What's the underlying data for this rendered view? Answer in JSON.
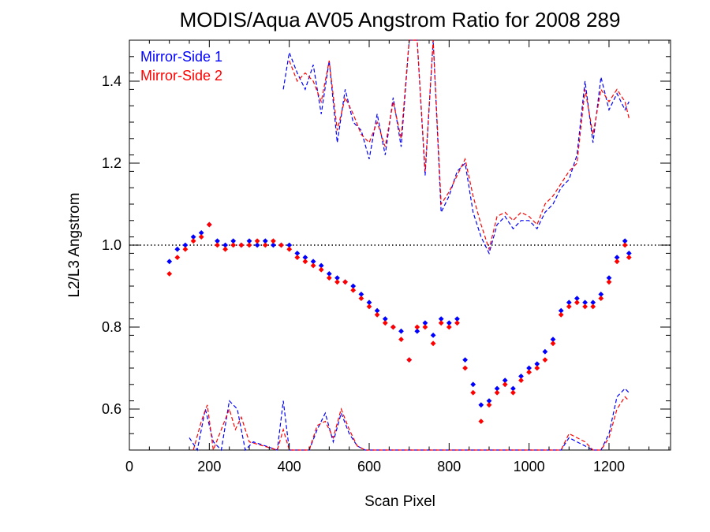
{
  "chart_data": {
    "type": "scatter",
    "title": "MODIS/Aqua AV05 Angstrom Ratio for 2008 289",
    "xlabel": "Scan Pixel",
    "ylabel": "L2/L3 Angstrom",
    "xlim": [
      0,
      1354
    ],
    "ylim": [
      0.5,
      1.5
    ],
    "xticks": [
      0,
      200,
      400,
      600,
      800,
      1000,
      1200
    ],
    "yticks": [
      0.6,
      0.8,
      1.0,
      1.2,
      1.4
    ],
    "xtick_labels": [
      "0",
      "200",
      "400",
      "600",
      "800",
      "1000",
      "1200"
    ],
    "ytick_labels": [
      "0.6",
      "0.8",
      "1.0",
      "1.2",
      "1.4"
    ],
    "reference_line": {
      "y": 1.0,
      "style": "dotted"
    },
    "grid": false,
    "legend_position": "top-left",
    "series": [
      {
        "name": "Mirror-Side 1",
        "color": "#0000ff",
        "points": {
          "x": [
            100,
            120,
            140,
            160,
            180,
            200,
            220,
            240,
            260,
            280,
            300,
            320,
            340,
            360,
            380,
            400,
            420,
            440,
            460,
            480,
            500,
            520,
            540,
            560,
            580,
            600,
            620,
            640,
            660,
            680,
            700,
            720,
            740,
            760,
            780,
            800,
            820,
            840,
            860,
            880,
            900,
            920,
            940,
            960,
            980,
            1000,
            1020,
            1040,
            1060,
            1080,
            1100,
            1120,
            1140,
            1160,
            1180,
            1200,
            1220,
            1240,
            1250
          ],
          "y": [
            0.96,
            0.99,
            1.0,
            1.02,
            1.03,
            1.05,
            1.01,
            1.0,
            1.01,
            1.0,
            1.01,
            1.0,
            1.01,
            1.0,
            1.0,
            1.0,
            0.98,
            0.97,
            0.96,
            0.95,
            0.93,
            0.92,
            0.91,
            0.9,
            0.88,
            0.86,
            0.84,
            0.82,
            0.8,
            0.79,
            0.72,
            0.79,
            0.81,
            0.78,
            0.82,
            0.81,
            0.82,
            0.72,
            0.66,
            0.61,
            0.62,
            0.65,
            0.67,
            0.65,
            0.68,
            0.7,
            0.71,
            0.74,
            0.77,
            0.84,
            0.86,
            0.87,
            0.86,
            0.86,
            0.88,
            0.92,
            0.97,
            1.01,
            0.98
          ]
        },
        "upper_envelope": {
          "x": [
            385,
            400,
            420,
            440,
            460,
            480,
            500,
            520,
            540,
            560,
            580,
            600,
            620,
            640,
            660,
            680,
            700,
            720,
            740,
            760,
            780,
            800,
            820,
            840,
            860,
            880,
            900,
            920,
            940,
            960,
            980,
            1000,
            1020,
            1040,
            1060,
            1080,
            1100,
            1120,
            1140,
            1160,
            1180,
            1200,
            1220,
            1240,
            1250
          ],
          "y": [
            1.38,
            1.47,
            1.42,
            1.38,
            1.44,
            1.32,
            1.45,
            1.25,
            1.38,
            1.3,
            1.28,
            1.21,
            1.32,
            1.22,
            1.36,
            1.24,
            1.5,
            1.5,
            1.17,
            1.5,
            1.08,
            1.12,
            1.18,
            1.2,
            1.08,
            1.02,
            0.98,
            1.05,
            1.07,
            1.04,
            1.06,
            1.06,
            1.04,
            1.08,
            1.1,
            1.14,
            1.16,
            1.22,
            1.4,
            1.25,
            1.41,
            1.33,
            1.37,
            1.33,
            1.35
          ]
        },
        "lower_envelope": {
          "x": [
            150,
            170,
            190,
            210,
            230,
            250,
            270,
            290,
            310,
            370,
            385,
            400,
            450,
            470,
            490,
            510,
            530,
            550,
            570,
            590,
            1080,
            1100,
            1120,
            1140,
            1160,
            1180,
            1200,
            1220,
            1240,
            1250
          ],
          "y": [
            0.53,
            0.5,
            0.6,
            0.52,
            0.5,
            0.62,
            0.6,
            0.5,
            0.52,
            0.5,
            0.62,
            0.5,
            0.5,
            0.55,
            0.59,
            0.52,
            0.59,
            0.54,
            0.51,
            0.5,
            0.5,
            0.53,
            0.52,
            0.51,
            0.5,
            0.5,
            0.54,
            0.63,
            0.65,
            0.64
          ]
        }
      },
      {
        "name": "Mirror-Side 2",
        "color": "#ff0000",
        "points": {
          "x": [
            100,
            120,
            140,
            160,
            180,
            200,
            220,
            240,
            260,
            280,
            300,
            320,
            340,
            360,
            380,
            400,
            420,
            440,
            460,
            480,
            500,
            520,
            540,
            560,
            580,
            600,
            620,
            640,
            660,
            680,
            700,
            720,
            740,
            760,
            780,
            800,
            820,
            840,
            860,
            880,
            900,
            920,
            940,
            960,
            980,
            1000,
            1020,
            1040,
            1060,
            1080,
            1100,
            1120,
            1140,
            1160,
            1180,
            1200,
            1220,
            1240,
            1250
          ],
          "y": [
            0.93,
            0.97,
            0.99,
            1.01,
            1.02,
            1.05,
            1.0,
            0.99,
            1.0,
            1.0,
            1.0,
            1.01,
            1.0,
            1.01,
            1.0,
            0.99,
            0.97,
            0.96,
            0.95,
            0.94,
            0.92,
            0.91,
            0.91,
            0.89,
            0.87,
            0.85,
            0.83,
            0.81,
            0.8,
            0.77,
            0.72,
            0.8,
            0.8,
            0.76,
            0.81,
            0.8,
            0.81,
            0.7,
            0.64,
            0.57,
            0.61,
            0.64,
            0.66,
            0.64,
            0.67,
            0.69,
            0.7,
            0.72,
            0.76,
            0.83,
            0.85,
            0.86,
            0.85,
            0.85,
            0.87,
            0.91,
            0.96,
            1.0,
            0.97
          ]
        },
        "upper_envelope": {
          "x": [
            400,
            420,
            440,
            460,
            480,
            500,
            520,
            540,
            560,
            580,
            600,
            620,
            640,
            660,
            680,
            700,
            720,
            740,
            760,
            780,
            800,
            820,
            840,
            860,
            880,
            900,
            920,
            940,
            960,
            980,
            1000,
            1020,
            1040,
            1060,
            1080,
            1100,
            1120,
            1140,
            1160,
            1180,
            1200,
            1220,
            1240,
            1250
          ],
          "y": [
            1.45,
            1.4,
            1.42,
            1.4,
            1.35,
            1.45,
            1.28,
            1.36,
            1.32,
            1.27,
            1.25,
            1.3,
            1.24,
            1.35,
            1.26,
            1.5,
            1.5,
            1.18,
            1.5,
            1.1,
            1.13,
            1.17,
            1.21,
            1.12,
            1.05,
            0.99,
            1.07,
            1.08,
            1.06,
            1.08,
            1.07,
            1.05,
            1.1,
            1.12,
            1.15,
            1.18,
            1.2,
            1.38,
            1.27,
            1.38,
            1.35,
            1.38,
            1.35,
            1.31
          ]
        },
        "lower_envelope": {
          "x": [
            160,
            180,
            195,
            210,
            230,
            250,
            265,
            280,
            300,
            370,
            385,
            400,
            450,
            470,
            490,
            510,
            530,
            550,
            570,
            590,
            1080,
            1100,
            1120,
            1140,
            1160,
            1180,
            1200,
            1220,
            1240,
            1250
          ],
          "y": [
            0.5,
            0.57,
            0.61,
            0.5,
            0.55,
            0.6,
            0.55,
            0.58,
            0.52,
            0.5,
            0.55,
            0.5,
            0.5,
            0.56,
            0.57,
            0.53,
            0.6,
            0.55,
            0.51,
            0.5,
            0.5,
            0.54,
            0.53,
            0.52,
            0.5,
            0.5,
            0.53,
            0.6,
            0.63,
            0.62
          ]
        }
      }
    ]
  }
}
